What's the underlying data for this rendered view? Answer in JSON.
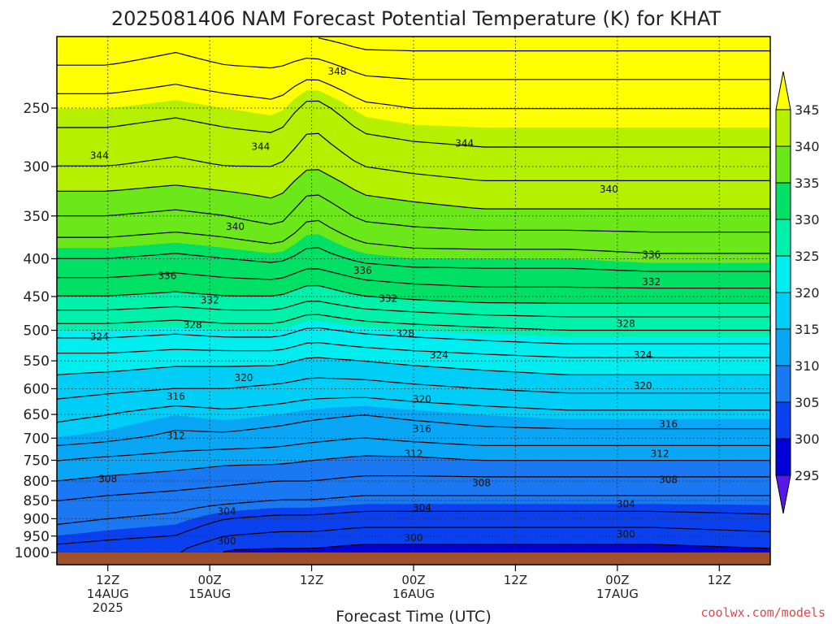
{
  "chart_data": {
    "type": "contour",
    "title": "2025081406 NAM Forecast Potential Temperature (K) for KHAT",
    "xlabel": "Forecast Time (UTC)",
    "ylabel": "",
    "y_axis": {
      "scale": "log",
      "inverted": true,
      "ticks": [
        250,
        300,
        350,
        400,
        450,
        500,
        550,
        600,
        650,
        700,
        750,
        800,
        850,
        900,
        950,
        1000
      ],
      "ylim": [
        1035,
        200
      ]
    },
    "x_axis": {
      "ticks": [
        {
          "hour": 6,
          "lines": [
            "12Z",
            "14AUG",
            "2025"
          ]
        },
        {
          "hour": 18,
          "lines": [
            "00Z",
            "15AUG"
          ]
        },
        {
          "hour": 30,
          "lines": [
            "12Z"
          ]
        },
        {
          "hour": 42,
          "lines": [
            "00Z",
            "16AUG"
          ]
        },
        {
          "hour": 54,
          "lines": [
            "12Z"
          ]
        },
        {
          "hour": 66,
          "lines": [
            "00Z",
            "17AUG"
          ]
        },
        {
          "hour": 78,
          "lines": [
            "12Z"
          ]
        }
      ],
      "xlim": [
        0,
        84
      ]
    },
    "grid": true,
    "colorbar": {
      "ticks": [
        295,
        300,
        305,
        310,
        315,
        320,
        325,
        330,
        335,
        340,
        345
      ],
      "levels": [
        {
          "lo": 290,
          "hi": 295,
          "color": "#5a18e8"
        },
        {
          "lo": 295,
          "hi": 300,
          "color": "#0000d8"
        },
        {
          "lo": 300,
          "hi": 305,
          "color": "#0a40ee"
        },
        {
          "lo": 305,
          "hi": 310,
          "color": "#1a78f2"
        },
        {
          "lo": 310,
          "hi": 315,
          "color": "#0aa6f6"
        },
        {
          "lo": 315,
          "hi": 320,
          "color": "#00cef6"
        },
        {
          "lo": 320,
          "hi": 325,
          "color": "#00eef0"
        },
        {
          "lo": 325,
          "hi": 330,
          "color": "#00f2aa"
        },
        {
          "lo": 330,
          "hi": 335,
          "color": "#00e064"
        },
        {
          "lo": 335,
          "hi": 340,
          "color": "#6ae81a"
        },
        {
          "lo": 340,
          "hi": 345,
          "color": "#b4f000"
        },
        {
          "lo": 345,
          "hi": 350,
          "color": "#ffff00"
        }
      ]
    },
    "contour_interval": 2,
    "contour_labels": [
      {
        "value": 348,
        "hour": 33,
        "p": 223
      },
      {
        "value": 344,
        "hour": 5,
        "p": 290
      },
      {
        "value": 344,
        "hour": 24,
        "p": 282
      },
      {
        "value": 344,
        "hour": 48,
        "p": 279
      },
      {
        "value": 340,
        "hour": 21,
        "p": 362
      },
      {
        "value": 340,
        "hour": 65,
        "p": 322
      },
      {
        "value": 336,
        "hour": 13,
        "p": 422
      },
      {
        "value": 336,
        "hour": 36,
        "p": 415
      },
      {
        "value": 336,
        "hour": 70,
        "p": 395
      },
      {
        "value": 332,
        "hour": 18,
        "p": 455
      },
      {
        "value": 332,
        "hour": 39,
        "p": 453
      },
      {
        "value": 332,
        "hour": 70,
        "p": 430
      },
      {
        "value": 328,
        "hour": 16,
        "p": 492
      },
      {
        "value": 328,
        "hour": 41,
        "p": 505
      },
      {
        "value": 328,
        "hour": 67,
        "p": 490
      },
      {
        "value": 324,
        "hour": 5,
        "p": 510
      },
      {
        "value": 324,
        "hour": 45,
        "p": 540
      },
      {
        "value": 324,
        "hour": 69,
        "p": 540
      },
      {
        "value": 320,
        "hour": 22,
        "p": 580
      },
      {
        "value": 320,
        "hour": 43,
        "p": 620
      },
      {
        "value": 320,
        "hour": 69,
        "p": 595
      },
      {
        "value": 316,
        "hour": 14,
        "p": 615
      },
      {
        "value": 316,
        "hour": 43,
        "p": 680
      },
      {
        "value": 316,
        "hour": 72,
        "p": 670
      },
      {
        "value": 312,
        "hour": 14,
        "p": 695
      },
      {
        "value": 312,
        "hour": 42,
        "p": 735
      },
      {
        "value": 312,
        "hour": 71,
        "p": 735
      },
      {
        "value": 308,
        "hour": 6,
        "p": 795
      },
      {
        "value": 308,
        "hour": 50,
        "p": 805
      },
      {
        "value": 308,
        "hour": 72,
        "p": 797
      },
      {
        "value": 304,
        "hour": 20,
        "p": 880
      },
      {
        "value": 304,
        "hour": 43,
        "p": 870
      },
      {
        "value": 304,
        "hour": 67,
        "p": 860
      },
      {
        "value": 300,
        "hour": 20,
        "p": 965
      },
      {
        "value": 300,
        "hour": 42,
        "p": 955
      },
      {
        "value": 300,
        "hour": 67,
        "p": 945
      }
    ],
    "profiles": [
      {
        "hour": 0,
        "theta": [
          [
            1000,
            303
          ],
          [
            950,
            305
          ],
          [
            900,
            306.5
          ],
          [
            850,
            308
          ],
          [
            800,
            310
          ],
          [
            750,
            312
          ],
          [
            700,
            315
          ],
          [
            650,
            316.5
          ],
          [
            600,
            319
          ],
          [
            550,
            321
          ],
          [
            500,
            325
          ],
          [
            450,
            330
          ],
          [
            400,
            334
          ],
          [
            350,
            338
          ],
          [
            300,
            342
          ],
          [
            250,
            345
          ],
          [
            200,
            350
          ]
        ]
      },
      {
        "hour": 6,
        "theta": [
          [
            1000,
            302.5
          ],
          [
            950,
            304.5
          ],
          [
            900,
            306
          ],
          [
            850,
            307.5
          ],
          [
            800,
            309.5
          ],
          [
            750,
            311.5
          ],
          [
            700,
            314.5
          ],
          [
            650,
            316
          ],
          [
            600,
            318.5
          ],
          [
            550,
            321
          ],
          [
            500,
            325
          ],
          [
            450,
            330
          ],
          [
            400,
            334
          ],
          [
            350,
            338
          ],
          [
            300,
            342
          ],
          [
            250,
            345
          ],
          [
            200,
            350
          ]
        ]
      },
      {
        "hour": 14,
        "theta": [
          [
            1000,
            302
          ],
          [
            950,
            304
          ],
          [
            900,
            305.5
          ],
          [
            850,
            307
          ],
          [
            800,
            309
          ],
          [
            750,
            311
          ],
          [
            700,
            313.5
          ],
          [
            650,
            315
          ],
          [
            600,
            318
          ],
          [
            550,
            320.5
          ],
          [
            500,
            324.5
          ],
          [
            450,
            329.5
          ],
          [
            400,
            333.5
          ],
          [
            350,
            337.5
          ],
          [
            300,
            341.5
          ],
          [
            250,
            344.5
          ],
          [
            200,
            349
          ]
        ]
      },
      {
        "hour": 20,
        "theta": [
          [
            1000,
            299.5
          ],
          [
            950,
            302
          ],
          [
            900,
            304
          ],
          [
            850,
            306.5
          ],
          [
            800,
            308.5
          ],
          [
            750,
            310.5
          ],
          [
            700,
            313.5
          ],
          [
            650,
            315.5
          ],
          [
            600,
            318
          ],
          [
            550,
            320.5
          ],
          [
            500,
            325
          ],
          [
            450,
            330
          ],
          [
            400,
            334
          ],
          [
            350,
            338
          ],
          [
            300,
            342
          ],
          [
            250,
            345
          ],
          [
            200,
            350
          ]
        ]
      },
      {
        "hour": 26,
        "theta": [
          [
            1000,
            299.5
          ],
          [
            950,
            301.5
          ],
          [
            900,
            303.5
          ],
          [
            850,
            306
          ],
          [
            800,
            308
          ],
          [
            750,
            310.5
          ],
          [
            700,
            313
          ],
          [
            650,
            315
          ],
          [
            600,
            317.5
          ],
          [
            550,
            320.5
          ],
          [
            500,
            325
          ],
          [
            450,
            330
          ],
          [
            400,
            334.5
          ],
          [
            350,
            339
          ],
          [
            300,
            342
          ],
          [
            250,
            345.5
          ],
          [
            200,
            350
          ]
        ]
      },
      {
        "hour": 30,
        "theta": [
          [
            1000,
            299.5
          ],
          [
            950,
            301.5
          ],
          [
            900,
            303.5
          ],
          [
            850,
            306
          ],
          [
            800,
            308
          ],
          [
            750,
            310
          ],
          [
            700,
            312.5
          ],
          [
            650,
            314.5
          ],
          [
            600,
            317
          ],
          [
            550,
            319.5
          ],
          [
            500,
            323.5
          ],
          [
            450,
            328.5
          ],
          [
            400,
            333
          ],
          [
            350,
            336
          ],
          [
            300,
            340
          ],
          [
            250,
            343
          ],
          [
            200,
            350
          ]
        ]
      },
      {
        "hour": 36,
        "theta": [
          [
            1000,
            299
          ],
          [
            950,
            301
          ],
          [
            900,
            303
          ],
          [
            850,
            305.5
          ],
          [
            800,
            307.5
          ],
          [
            750,
            309.5
          ],
          [
            700,
            312
          ],
          [
            650,
            314
          ],
          [
            600,
            317
          ],
          [
            550,
            320
          ],
          [
            500,
            324.5
          ],
          [
            450,
            330
          ],
          [
            400,
            334.5
          ],
          [
            350,
            338.5
          ],
          [
            300,
            342
          ],
          [
            250,
            345.5
          ],
          [
            200,
            351
          ]
        ]
      },
      {
        "hour": 42,
        "theta": [
          [
            1000,
            299
          ],
          [
            950,
            301
          ],
          [
            900,
            303
          ],
          [
            850,
            305.5
          ],
          [
            800,
            307.5
          ],
          [
            750,
            309.5
          ],
          [
            700,
            312.5
          ],
          [
            650,
            314.5
          ],
          [
            600,
            317.5
          ],
          [
            550,
            320.5
          ],
          [
            500,
            325
          ],
          [
            450,
            330.5
          ],
          [
            400,
            335
          ],
          [
            350,
            339
          ],
          [
            300,
            342.5
          ],
          [
            250,
            346
          ],
          [
            200,
            351
          ]
        ]
      },
      {
        "hour": 50,
        "theta": [
          [
            1000,
            299
          ],
          [
            950,
            301
          ],
          [
            900,
            303
          ],
          [
            850,
            305.5
          ],
          [
            800,
            307.5
          ],
          [
            750,
            310
          ],
          [
            700,
            313
          ],
          [
            650,
            315
          ],
          [
            600,
            318
          ],
          [
            550,
            321
          ],
          [
            500,
            325.5
          ],
          [
            450,
            331
          ],
          [
            400,
            335
          ],
          [
            350,
            339.5
          ],
          [
            300,
            343
          ],
          [
            250,
            346
          ],
          [
            200,
            351
          ]
        ]
      },
      {
        "hour": 60,
        "theta": [
          [
            1000,
            299
          ],
          [
            950,
            301
          ],
          [
            900,
            303
          ],
          [
            850,
            305.5
          ],
          [
            800,
            307.5
          ],
          [
            750,
            310
          ],
          [
            700,
            313
          ],
          [
            650,
            315.5
          ],
          [
            600,
            318.5
          ],
          [
            550,
            321.5
          ],
          [
            500,
            326
          ],
          [
            450,
            331
          ],
          [
            400,
            335
          ],
          [
            350,
            339.5
          ],
          [
            300,
            343
          ],
          [
            250,
            346
          ],
          [
            200,
            351
          ]
        ]
      },
      {
        "hour": 70,
        "theta": [
          [
            1000,
            299
          ],
          [
            950,
            301
          ],
          [
            900,
            303
          ],
          [
            850,
            305.5
          ],
          [
            800,
            307.5
          ],
          [
            750,
            310
          ],
          [
            700,
            313
          ],
          [
            650,
            315.5
          ],
          [
            600,
            318.5
          ],
          [
            550,
            321.5
          ],
          [
            500,
            326
          ],
          [
            450,
            331
          ],
          [
            400,
            335.5
          ],
          [
            350,
            339.5
          ],
          [
            300,
            343
          ],
          [
            250,
            346
          ],
          [
            200,
            351
          ]
        ]
      },
      {
        "hour": 84,
        "theta": [
          [
            1000,
            299.5
          ],
          [
            950,
            301.5
          ],
          [
            900,
            303.5
          ],
          [
            850,
            305.5
          ],
          [
            800,
            307.5
          ],
          [
            750,
            310
          ],
          [
            700,
            313
          ],
          [
            650,
            315.5
          ],
          [
            600,
            318.5
          ],
          [
            550,
            321.5
          ],
          [
            500,
            326
          ],
          [
            450,
            331
          ],
          [
            400,
            335.5
          ],
          [
            350,
            339.5
          ],
          [
            300,
            343
          ],
          [
            250,
            346
          ],
          [
            200,
            351
          ]
        ]
      }
    ],
    "ground_color": "#a0522d"
  },
  "credit": "coolwx.com/models"
}
